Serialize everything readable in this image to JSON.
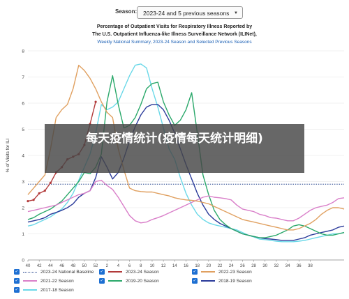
{
  "header": {
    "season_label": "Season:",
    "season_value": "2023-24 and 5 previous seasons"
  },
  "titles": {
    "line1": "Percentage of Outpatient Visits for Respiratory Illness Reported by",
    "line2": "The U.S. Outpatient Influenza-like Illness Surveillance Network (ILINet),",
    "line3": "Weekly National Summary, 2023-24 Season and Selected Previous Seasons"
  },
  "overlay_text": "每天疫情统计(疫情每天统计明细)",
  "chart_data": {
    "type": "line",
    "xlabel": "Week",
    "ylabel": "% of Visits for ILI",
    "ylim": [
      0,
      8
    ],
    "yticks": [
      0,
      1,
      2,
      3,
      4,
      5,
      6,
      7,
      8
    ],
    "xticks": [
      "40",
      "42",
      "44",
      "46",
      "48",
      "50",
      "52",
      "2",
      "4",
      "6",
      "8",
      "10",
      "12",
      "14",
      "16",
      "18",
      "20",
      "22",
      "24",
      "26",
      "28",
      "30",
      "32",
      "34",
      "36",
      "38"
    ],
    "grid": true,
    "legend_position": "bottom",
    "baseline": {
      "name": "2023-24 National Baseline",
      "value": 2.9,
      "color": "#1f3f8a"
    },
    "series": [
      {
        "name": "2023-24 Season",
        "color": "#b23a3a",
        "marker": true,
        "values": [
          2.25,
          2.3,
          2.55,
          2.65,
          2.95,
          3.35,
          3.55,
          3.85,
          3.95,
          4.05,
          4.4,
          5.2,
          6.05
        ]
      },
      {
        "name": "2022-23 Season",
        "color": "#e0a060",
        "values": [
          2.5,
          2.75,
          3.0,
          3.25,
          4.25,
          5.45,
          5.75,
          5.95,
          6.55,
          7.45,
          7.25,
          6.95,
          6.55,
          6.05,
          5.65,
          5.45,
          4.25,
          3.45,
          2.75,
          2.65,
          2.62,
          2.6,
          2.6,
          2.55,
          2.5,
          2.45,
          2.38,
          2.33,
          2.3,
          2.28,
          2.25,
          2.2,
          2.15,
          2.05,
          1.95,
          1.85,
          1.75,
          1.65,
          1.55,
          1.5,
          1.45,
          1.4,
          1.35,
          1.3,
          1.25,
          1.2,
          1.15,
          1.15,
          1.2,
          1.3,
          1.4,
          1.55,
          1.75,
          1.9,
          2.0,
          2.0,
          1.95
        ]
      },
      {
        "name": "2021-22 Season",
        "color": "#d97fc9",
        "values": [
          1.85,
          1.9,
          1.95,
          2.0,
          2.05,
          2.1,
          2.2,
          2.3,
          2.4,
          2.5,
          2.55,
          2.65,
          3.0,
          3.05,
          2.85,
          2.7,
          2.4,
          2.05,
          1.7,
          1.5,
          1.42,
          1.45,
          1.55,
          1.62,
          1.7,
          1.8,
          1.9,
          2.0,
          2.1,
          2.2,
          2.3,
          2.4,
          2.45,
          2.4,
          2.38,
          2.35,
          2.3,
          2.1,
          1.95,
          1.9,
          1.85,
          1.75,
          1.7,
          1.62,
          1.6,
          1.55,
          1.5,
          1.5,
          1.6,
          1.75,
          1.9,
          2.0,
          2.05,
          2.1,
          2.2,
          2.35,
          2.38
        ]
      },
      {
        "name": "2019-20 Season",
        "color": "#2aa86a",
        "values": [
          1.55,
          1.62,
          1.75,
          1.85,
          1.95,
          2.1,
          2.25,
          2.5,
          2.75,
          3.0,
          3.35,
          3.3,
          3.55,
          4.05,
          6.05,
          7.05,
          5.95,
          5.05,
          5.15,
          5.45,
          5.95,
          6.55,
          6.75,
          6.8,
          6.05,
          5.55,
          5.15,
          5.35,
          5.75,
          6.4,
          4.85,
          3.25,
          2.5,
          1.9,
          1.55,
          1.35,
          1.2,
          1.1,
          1.0,
          0.95,
          0.9,
          0.85,
          0.85,
          0.9,
          0.95,
          1.05,
          1.15,
          1.3,
          1.35,
          1.3,
          1.2,
          1.1,
          1.0,
          0.95,
          0.95,
          1.0,
          1.05
        ]
      },
      {
        "name": "2018-19 Season",
        "color": "#2a3a9a",
        "values": [
          1.45,
          1.5,
          1.55,
          1.62,
          1.75,
          1.82,
          1.9,
          2.0,
          2.15,
          2.4,
          2.55,
          2.65,
          3.15,
          3.95,
          3.55,
          3.1,
          3.35,
          3.9,
          4.55,
          5.1,
          5.55,
          5.85,
          5.95,
          5.95,
          5.75,
          5.35,
          4.85,
          4.25,
          3.65,
          3.1,
          2.55,
          2.1,
          1.75,
          1.55,
          1.4,
          1.3,
          1.2,
          1.1,
          1.0,
          0.95,
          0.9,
          0.85,
          0.82,
          0.8,
          0.78,
          0.75,
          0.75,
          0.75,
          0.8,
          0.85,
          0.95,
          1.0,
          1.05,
          1.1,
          1.15,
          1.25,
          1.3
        ]
      },
      {
        "name": "2017-18 Season",
        "color": "#6ad8e8",
        "values": [
          1.3,
          1.35,
          1.45,
          1.55,
          1.65,
          1.8,
          1.95,
          2.2,
          2.55,
          3.05,
          3.55,
          4.05,
          4.85,
          5.95,
          5.75,
          5.85,
          6.05,
          6.55,
          7.05,
          7.45,
          7.5,
          7.35,
          6.55,
          5.85,
          5.05,
          4.25,
          3.85,
          3.15,
          2.55,
          2.1,
          1.75,
          1.55,
          1.42,
          1.35,
          1.3,
          1.25,
          1.2,
          1.15,
          1.05,
          0.95,
          0.88,
          0.8,
          0.78,
          0.75,
          0.72,
          0.7,
          0.7,
          0.7,
          0.72,
          0.75,
          0.8,
          0.85,
          0.9,
          0.95,
          1.0,
          1.0,
          1.05
        ]
      }
    ]
  },
  "legend": {
    "items": [
      {
        "label": "2023-24 National Baseline",
        "color": "#1f3f8a",
        "style": "dotted"
      },
      {
        "label": "2023-24 Season",
        "color": "#b23a3a",
        "style": "solid"
      },
      {
        "label": "2022-23 Season",
        "color": "#e0a060",
        "style": "solid"
      },
      {
        "label": "2021-22 Season",
        "color": "#d97fc9",
        "style": "solid"
      },
      {
        "label": "2019-20 Season",
        "color": "#2aa86a",
        "style": "solid"
      },
      {
        "label": "2018-19 Season",
        "color": "#2a3a9a",
        "style": "solid"
      },
      {
        "label": "2017-18 Season",
        "color": "#6ad8e8",
        "style": "solid"
      }
    ]
  }
}
